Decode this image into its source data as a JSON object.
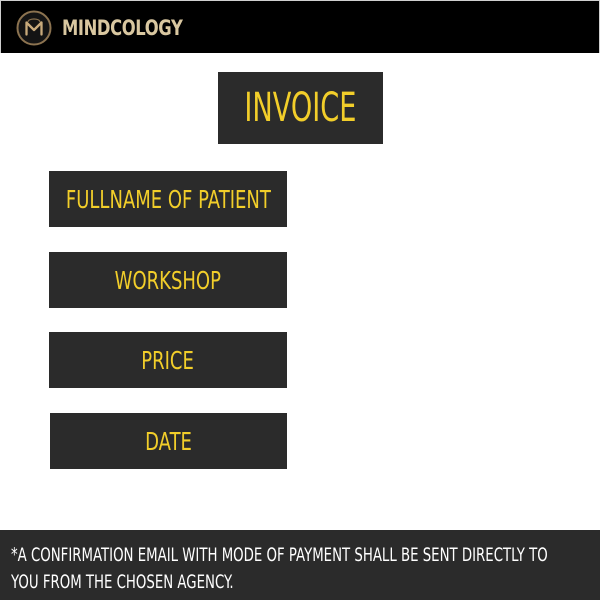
{
  "header": {
    "brand_name": "MINDCOLOGY",
    "logo_icon": "brain-m-logo-icon",
    "background_color": "#000000",
    "brand_color": "#d9c7a0"
  },
  "invoice": {
    "title": "INVOICE"
  },
  "fields": [
    {
      "label": "FULLNAME OF PATIENT"
    },
    {
      "label": "WORKSHOP"
    },
    {
      "label": "PRICE"
    },
    {
      "label": "DATE"
    }
  ],
  "footer": {
    "note": "*A CONFIRMATION EMAIL WITH MODE OF PAYMENT SHALL BE SENT DIRECTLY TO YOU FROM THE CHOSEN AGENCY."
  },
  "colors": {
    "accent": "#f2ce2a",
    "panel": "#2b2b2b",
    "page_background": "#ffffff"
  }
}
